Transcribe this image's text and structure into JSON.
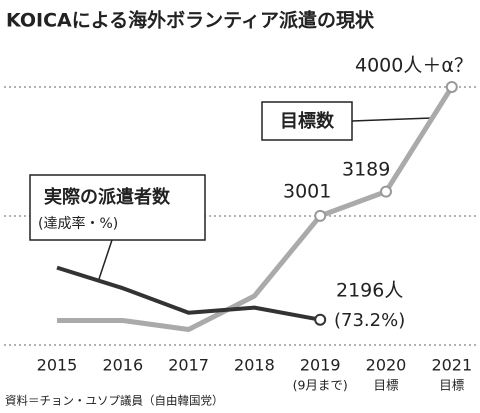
{
  "chart_data": {
    "type": "line",
    "title": "KOICAによる海外ボランティア派遣の現状",
    "categories": [
      "2015",
      "2016",
      "2017",
      "2018",
      "2019",
      "2020",
      "2021"
    ],
    "category_notes": [
      null,
      null,
      null,
      null,
      "(9月まで)",
      "目標",
      "目標"
    ],
    "series": [
      {
        "name": "目標数",
        "color": "#aaaaaa",
        "values": [
          2190,
          2190,
          2120,
          2380,
          3001,
          3189,
          4000
        ],
        "value_labels": [
          null,
          null,
          null,
          null,
          "3001",
          "3189",
          "4000人＋α？"
        ],
        "markers": [
          false,
          false,
          false,
          false,
          true,
          true,
          true
        ]
      },
      {
        "name": "実際の派遣者数",
        "legend_note": "(達成率・%)",
        "color": "#333333",
        "values": [
          2600,
          2440,
          2250,
          2290,
          2196,
          null,
          null
        ],
        "value_labels": [
          null,
          null,
          null,
          null,
          "2196人",
          null,
          null
        ],
        "value_notes": [
          null,
          null,
          null,
          null,
          "(73.2%)",
          null,
          null
        ],
        "markers": [
          false,
          false,
          false,
          false,
          true,
          false,
          false
        ]
      }
    ],
    "ylim": [
      2000,
      4000
    ],
    "yticks": [
      2000,
      3000,
      4000
    ],
    "grid": true,
    "source": "資料＝チョン・ユソプ議員（自由韓国党）"
  }
}
